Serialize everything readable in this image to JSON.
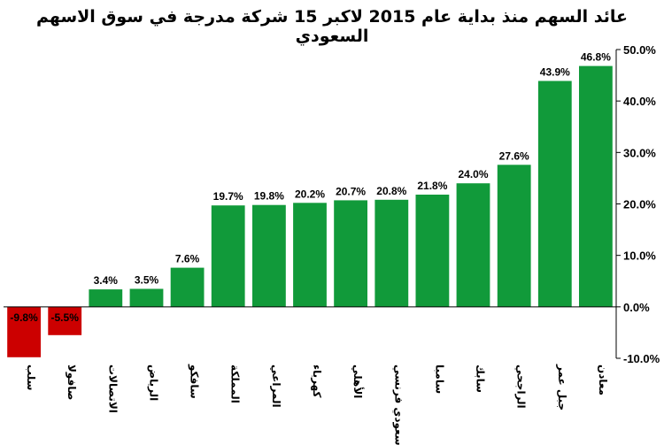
{
  "chart_data": {
    "type": "bar",
    "title": "عائد السهم منذ بداية عام 2015 لاكبر 15 شركة مدرجة في سوق الاسهم السعودي",
    "categories": [
      "معادن",
      "جبل عمر",
      "الراجحي",
      "سابك",
      "سامبا",
      "سعودي فرنسي",
      "الأهلي",
      "كهرباء",
      "المراعي",
      "المملكة",
      "سافكو",
      "الرياض",
      "الاتصالات",
      "صافولا",
      "سلب"
    ],
    "values": [
      46.8,
      43.9,
      27.6,
      24.0,
      21.8,
      20.8,
      20.7,
      20.2,
      19.8,
      19.7,
      7.6,
      3.5,
      3.4,
      -5.5,
      -9.8
    ],
    "data_labels": [
      "46.8%",
      "43.9%",
      "27.6%",
      "24.0%",
      "21.8%",
      "20.8%",
      "20.7%",
      "20.2%",
      "19.8%",
      "19.7%",
      "7.6%",
      "3.5%",
      "3.4%",
      "-5.5%",
      "-9.8%"
    ],
    "y_ticks": [
      50,
      40,
      30,
      20,
      10,
      0,
      -10
    ],
    "y_tick_labels": [
      "50.0%",
      "40.0%",
      "30.0%",
      "20.0%",
      "10.0%",
      "0.0%",
      "-10.0%"
    ],
    "ylim": [
      -10,
      50
    ],
    "x_direction": "right-to-left",
    "y_axis_position": "right",
    "grid": false,
    "legend": "none",
    "colors": {
      "positive": "#119a3a",
      "negative": "#cc0000",
      "axis": "#000000"
    }
  }
}
